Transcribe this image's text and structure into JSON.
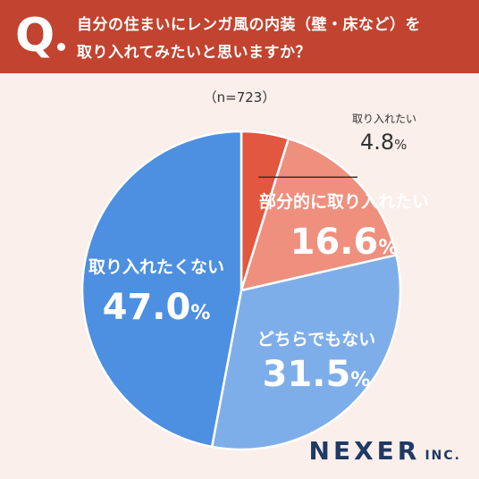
{
  "header": {
    "question_mark": "Q",
    "question_line_1": "自分の住まいにレンガ風の内装（壁・床など）を",
    "question_line_2": "取り入れてみたいと思いますか？"
  },
  "sample_label": "（n=723）",
  "logo": {
    "main": "NEXER",
    "sub": "INC."
  },
  "colors": {
    "header_bg": "#c2432f",
    "slice_1": "#e2573f",
    "slice_2": "#ef8f7e",
    "slice_3": "#7eaee9",
    "slice_4": "#4d8fe1",
    "logo": "#1f3a64"
  },
  "chart_data": {
    "type": "pie",
    "title": "",
    "series": [
      {
        "name": "",
        "categories": [
          "取り入れたい",
          "部分的に取り入れたい",
          "どちらでもない",
          "取り入れたくない"
        ],
        "values": [
          4.8,
          16.6,
          31.5,
          47.0
        ],
        "value_labels": [
          "4.8",
          "16.6",
          "31.5",
          "47.0"
        ],
        "unit": "%",
        "colors": [
          "#e2573f",
          "#ef8f7e",
          "#7eaee9",
          "#4d8fe1"
        ]
      }
    ]
  }
}
